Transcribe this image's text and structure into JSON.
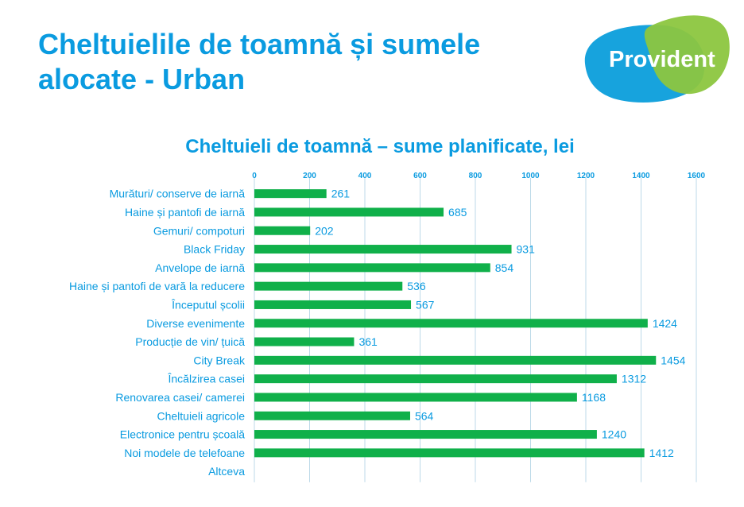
{
  "slide": {
    "title": "Cheltuielile de toamnă și sumele alocate - Urban"
  },
  "logo": {
    "text": "Provident"
  },
  "colors": {
    "accent": "#0a9be0",
    "bar": "#10b04a",
    "logo_blue": "#17a3dd",
    "logo_green": "#8cc63f",
    "grid": "#bcd9e8"
  },
  "chart_data": {
    "type": "bar",
    "orientation": "horizontal",
    "title": "Cheltuieli de toamnă – sume planificate, lei",
    "xlim": [
      0,
      1600
    ],
    "xticks": [
      0,
      200,
      400,
      600,
      800,
      1000,
      1200,
      1400,
      1600
    ],
    "x_axis_position": "top",
    "grid": true,
    "categories": [
      "Murături/ conserve de iarnă",
      "Haine și pantofi de iarnă",
      "Gemuri/ compoturi",
      "Black Friday",
      "Anvelope de iarnă",
      "Haine și pantofi de vară la reducere",
      "Începutul școlii",
      "Diverse evenimente",
      "Producție de vin/ țuică",
      "City Break",
      "Încălzirea casei",
      "Renovarea casei/ camerei",
      "Cheltuieli agricole",
      "Electronice pentru școală",
      "Noi modele de telefoane",
      "Altceva"
    ],
    "values": [
      261,
      685,
      202,
      931,
      854,
      536,
      567,
      1424,
      361,
      1454,
      1312,
      1168,
      564,
      1240,
      1412,
      null
    ]
  }
}
